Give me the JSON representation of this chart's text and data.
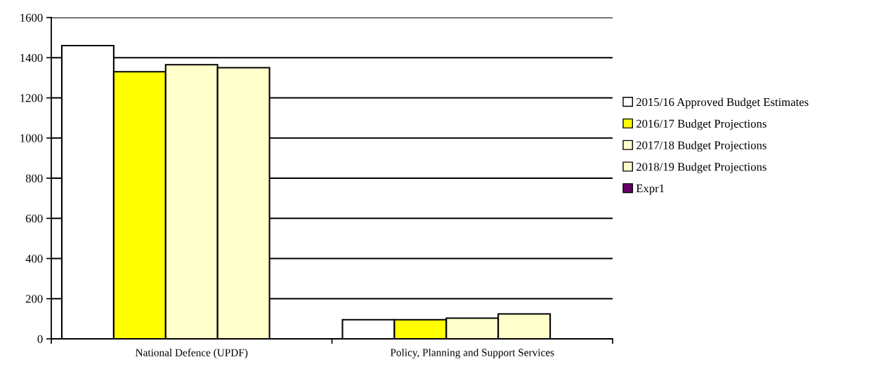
{
  "chart_data": {
    "type": "bar",
    "categories": [
      "National Defence (UPDF)",
      "Policy, Planning and Support Services"
    ],
    "series": [
      {
        "name": "2015/16 Approved Budget Estimates",
        "color": "#ffffff",
        "values": [
          1460,
          95
        ]
      },
      {
        "name": "2016/17 Budget Projections",
        "color": "#ffff00",
        "values": [
          1330,
          95
        ]
      },
      {
        "name": "2017/18 Budget Projections",
        "color": "#ffffcc",
        "values": [
          1365,
          103
        ]
      },
      {
        "name": "2018/19 Budget Projections",
        "color": "#ffffcc",
        "values": [
          1350,
          124
        ]
      },
      {
        "name": "Expr1",
        "color": "#660066",
        "values": [
          null,
          null
        ]
      }
    ],
    "ylim": [
      0,
      1600
    ],
    "yticks": [
      0,
      200,
      400,
      600,
      800,
      1000,
      1200,
      1400,
      1600
    ],
    "grid": "y",
    "legend": "right"
  }
}
